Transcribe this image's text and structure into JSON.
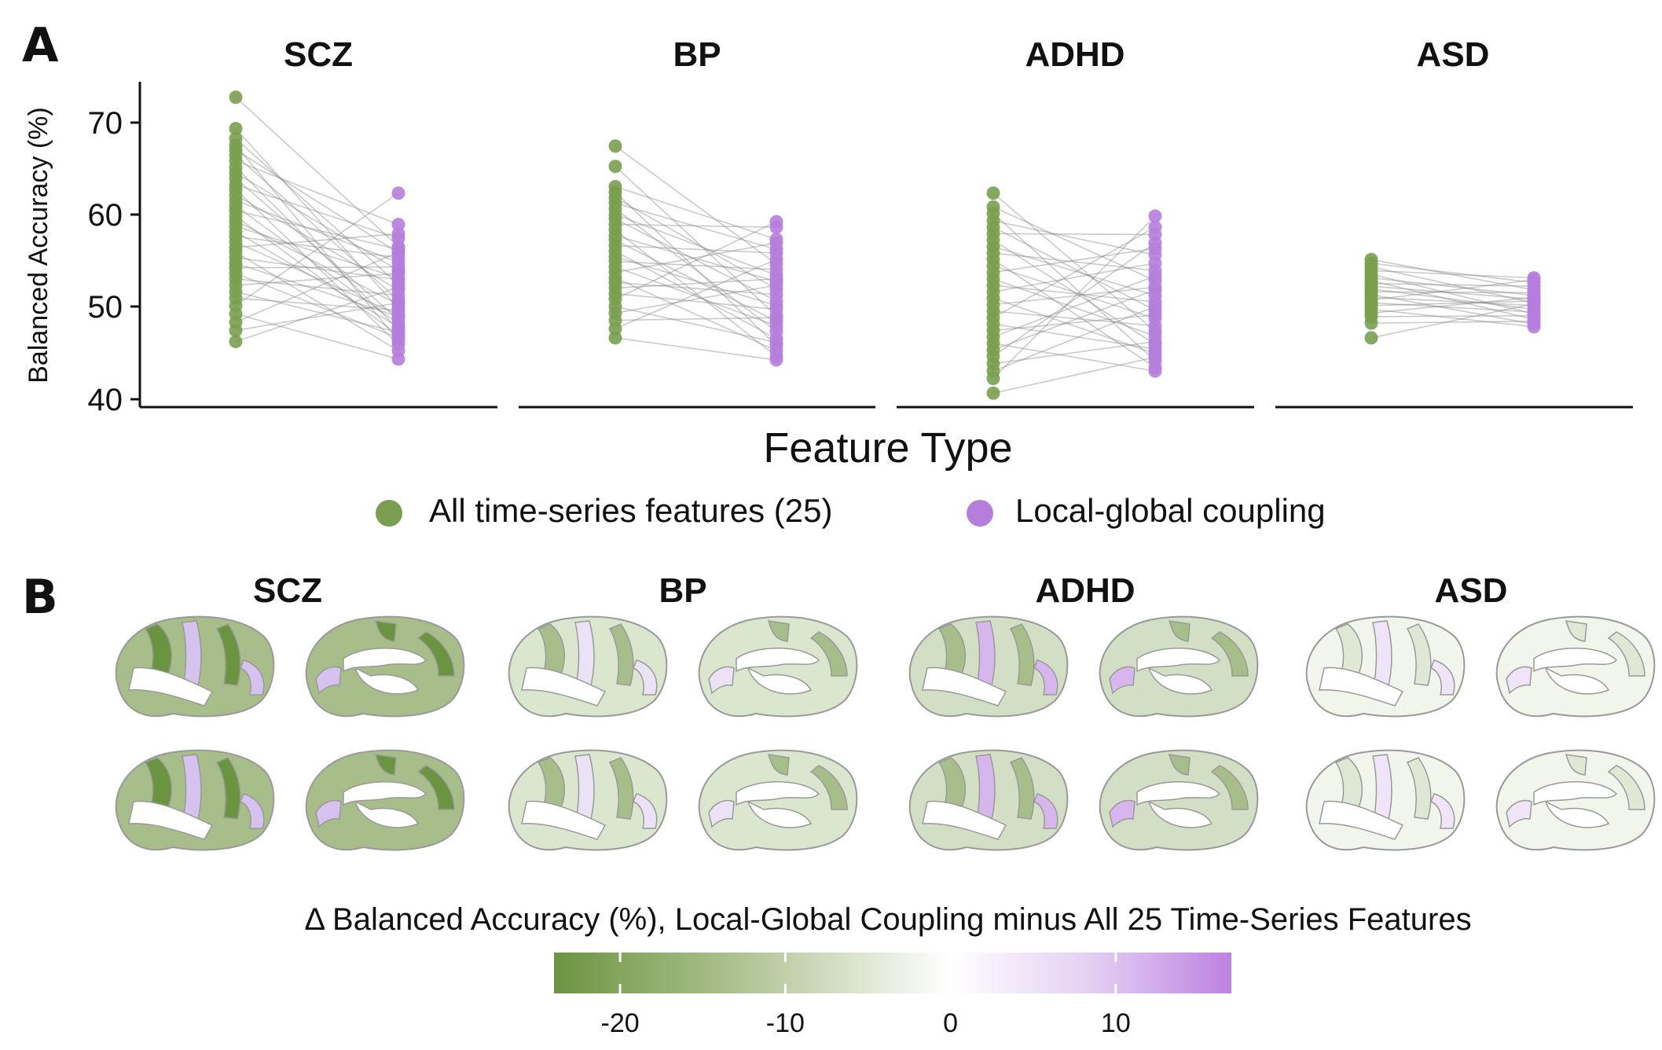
{
  "panel_a": {
    "letter": "A",
    "ylabel": "Balanced Accuracy (%)",
    "xlabel": "Feature Type",
    "yticks": [
      "40",
      "50",
      "60",
      "70"
    ],
    "legend": [
      {
        "label": "All time-series features (25)",
        "color": "#7a9e4f"
      },
      {
        "label": "Local-global coupling",
        "color": "#b57edc"
      }
    ]
  },
  "panel_b": {
    "letter": "B",
    "facets": [
      "SCZ",
      "BP",
      "ADHD",
      "ASD"
    ],
    "colorbar": {
      "title": "Δ Balanced Accuracy (%), Local-Global Coupling minus All 25 Time-Series Features",
      "ticks": [
        "-20",
        "-10",
        "0",
        "10"
      ],
      "tick_values": [
        -20,
        -10,
        0,
        10
      ],
      "range": [
        -24,
        17
      ],
      "colors": [
        "#6b9440",
        "#ffffff",
        "#bd82e2"
      ]
    },
    "maps": [
      {
        "disorder": "SCZ",
        "color": "#a8be8a",
        "accent": "#6b9440",
        "minor": "#d6c2ee"
      },
      {
        "disorder": "BP",
        "color": "#dbe6cf",
        "accent": "#a8be8a",
        "minor": "#ece2f6"
      },
      {
        "disorder": "ADHD",
        "color": "#d2dfc4",
        "accent": "#a8be8a",
        "minor": "#d7b6ee"
      },
      {
        "disorder": "ASD",
        "color": "#f1f5ec",
        "accent": "#dfe8d4",
        "minor": "#efe4f8"
      }
    ]
  },
  "chart_data": {
    "type": "scatter",
    "description_type": "paired dot plot (slope chart) faceted by disorder",
    "facets": [
      "SCZ",
      "BP",
      "ADHD",
      "ASD"
    ],
    "x_categories": [
      "All time-series features (25)",
      "Local-global coupling"
    ],
    "xlabel": "Feature Type",
    "ylabel": "Balanced Accuracy (%)",
    "ylim": [
      39,
      74
    ],
    "yticks": [
      40,
      50,
      60,
      70
    ],
    "legend_position": "bottom",
    "grid": false,
    "series": [
      {
        "name": "SCZ",
        "all_features": [
          72.7,
          69.3,
          68.2,
          67.5,
          67.0,
          66.4,
          65.8,
          65.1,
          64.5,
          63.9,
          63.2,
          62.7,
          62.1,
          61.5,
          60.9,
          60.4,
          59.8,
          59.3,
          58.7,
          58.1,
          57.6,
          57.0,
          56.4,
          55.9,
          55.3,
          54.7,
          54.2,
          53.6,
          53.0,
          52.3,
          51.6,
          50.9,
          50.1,
          49.2,
          48.3,
          47.4,
          46.2
        ],
        "local_global": [
          56.5,
          49.8,
          52.4,
          46.3,
          55.8,
          50.7,
          58.9,
          47.5,
          53.9,
          48.6,
          57.4,
          45.9,
          51.8,
          54.8,
          48.1,
          56.2,
          46.9,
          50.2,
          53.1,
          47.8,
          55.3,
          49.1,
          57.9,
          45.2,
          52.9,
          48.9,
          54.3,
          46.6,
          51.2,
          53.6,
          47.2,
          49.6,
          62.3,
          44.3,
          55.9,
          50.4,
          52.1
        ]
      },
      {
        "name": "BP",
        "all_features": [
          67.4,
          65.2,
          63.0,
          62.4,
          61.8,
          61.2,
          60.6,
          60.0,
          59.5,
          58.9,
          58.3,
          57.7,
          57.2,
          56.6,
          56.0,
          55.4,
          54.9,
          54.3,
          53.7,
          53.1,
          52.6,
          52.0,
          51.4,
          50.8,
          50.0,
          49.3,
          48.5,
          47.6,
          46.6
        ],
        "local_global": [
          54.6,
          49.0,
          57.3,
          45.8,
          51.9,
          56.2,
          47.3,
          53.4,
          50.6,
          58.6,
          44.6,
          52.7,
          48.4,
          55.8,
          46.5,
          50.1,
          54.0,
          47.9,
          56.9,
          45.2,
          51.3,
          53.0,
          49.7,
          59.2,
          46.1,
          52.3,
          48.8,
          55.1,
          44.2
        ]
      },
      {
        "name": "ADHD",
        "all_features": [
          62.3,
          60.8,
          60.1,
          59.3,
          58.6,
          57.9,
          57.2,
          56.5,
          55.8,
          55.1,
          54.4,
          53.7,
          53.0,
          52.3,
          51.6,
          50.9,
          50.2,
          49.5,
          48.8,
          48.1,
          47.4,
          46.7,
          46.0,
          45.3,
          44.6,
          43.8,
          43.0,
          42.2,
          40.6
        ],
        "local_global": [
          47.3,
          52.8,
          44.1,
          55.6,
          49.6,
          57.8,
          45.9,
          51.2,
          53.9,
          43.4,
          48.7,
          56.3,
          46.8,
          50.5,
          54.7,
          44.9,
          52.1,
          47.9,
          58.6,
          45.4,
          49.1,
          53.3,
          43.0,
          51.8,
          56.9,
          46.2,
          50.0,
          59.8,
          44.5
        ]
      },
      {
        "name": "ASD",
        "all_features": [
          55.1,
          54.7,
          54.3,
          53.9,
          53.5,
          53.1,
          52.8,
          52.5,
          52.2,
          51.9,
          51.6,
          51.3,
          51.0,
          50.7,
          50.4,
          50.1,
          49.7,
          49.3,
          48.9,
          48.2,
          46.6
        ],
        "local_global": [
          51.8,
          52.6,
          50.4,
          53.1,
          49.2,
          51.2,
          48.6,
          52.2,
          50.8,
          49.7,
          51.5,
          48.1,
          50.1,
          52.9,
          49.4,
          50.6,
          47.8,
          51.0,
          49.0,
          48.4,
          50.3
        ]
      }
    ]
  }
}
